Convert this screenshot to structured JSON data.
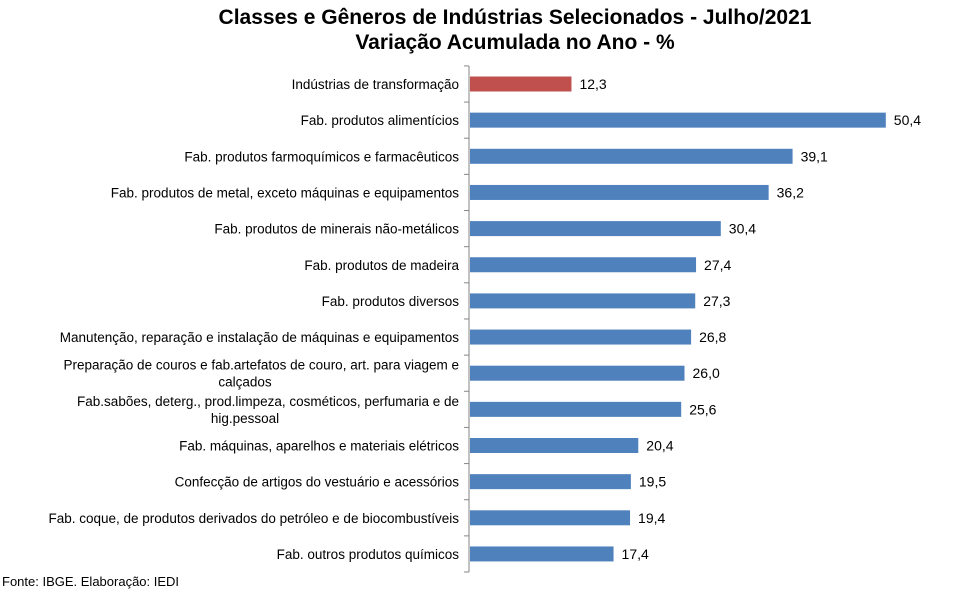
{
  "chart_data": {
    "type": "bar",
    "orientation": "horizontal",
    "title": "Classes e Gêneros de Indústrias Selecionados - Julho/2021",
    "subtitle": "Variação Acumulada no Ano - %",
    "categories": [
      [
        "Indústrias de transformação"
      ],
      [
        "Fab. produtos alimentícios"
      ],
      [
        "Fab. produtos farmoquímicos e farmacêuticos"
      ],
      [
        "Fab. produtos de metal, exceto máquinas e equipamentos"
      ],
      [
        "Fab. produtos de minerais não-metálicos"
      ],
      [
        "Fab. produtos de madeira"
      ],
      [
        "Fab. produtos diversos"
      ],
      [
        "Manutenção, reparação e instalação de máquinas e equipamentos"
      ],
      [
        "Preparação de couros e fab.artefatos de couro, art. para viagem e",
        "calçados"
      ],
      [
        "Fab.sabões, deterg., prod.limpeza, cosméticos, perfumaria e de",
        "hig.pessoal"
      ],
      [
        "Fab. máquinas, aparelhos e materiais elétricos"
      ],
      [
        "Confecção de artigos do vestuário e acessórios"
      ],
      [
        "Fab. coque, de produtos derivados do petróleo e de biocombustíveis"
      ],
      [
        "Fab. outros produtos químicos"
      ]
    ],
    "values": [
      12.3,
      50.4,
      39.1,
      36.2,
      30.4,
      27.4,
      27.3,
      26.8,
      26.0,
      25.6,
      20.4,
      19.5,
      19.4,
      17.4
    ],
    "value_labels": [
      "12,3",
      "50,4",
      "39,1",
      "36,2",
      "30,4",
      "27,4",
      "27,3",
      "26,8",
      "26,0",
      "25,6",
      "20,4",
      "19,5",
      "19,4",
      "17,4"
    ],
    "xlim": [
      0,
      55
    ],
    "highlight_index": 0,
    "colors": {
      "highlight": "#C0504D",
      "default": "#4F81BD"
    },
    "grid": false,
    "legend": "none"
  },
  "footer": "Fonte: IBGE. Elaboração: IEDI"
}
